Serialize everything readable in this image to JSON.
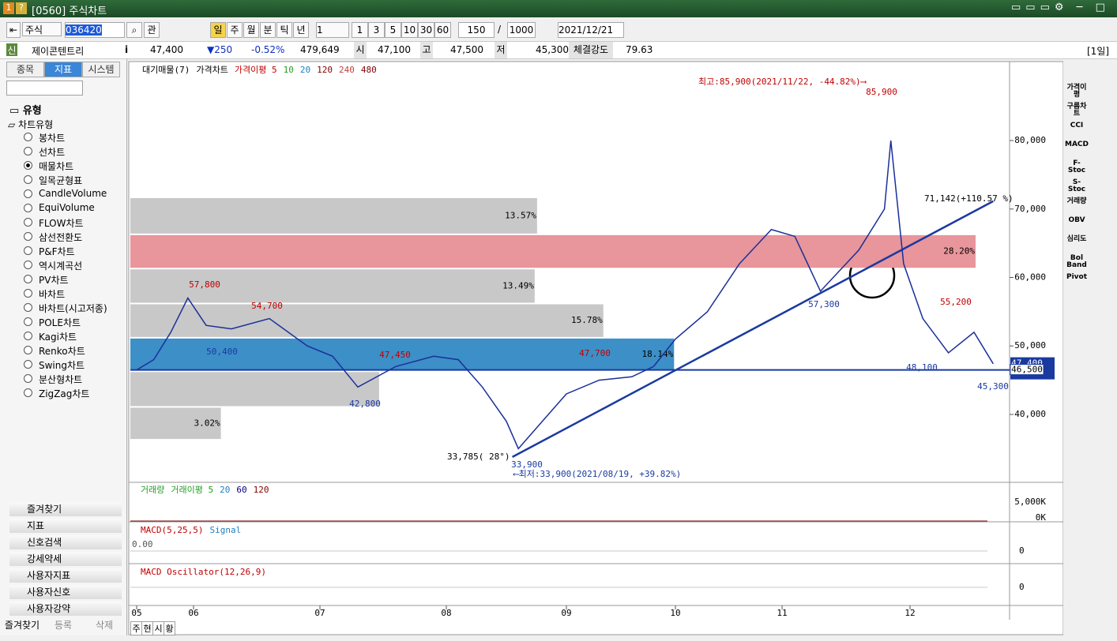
{
  "window": {
    "title": "[0560] 주식차트"
  },
  "toolbar": {
    "market": "주식",
    "code": "036420",
    "mode": "관",
    "units": [
      "일",
      "주",
      "월",
      "분",
      "틱",
      "년"
    ],
    "unit": "1",
    "periods": [
      "1",
      "3",
      "5",
      "10",
      "30",
      "60"
    ],
    "count": "150",
    "sep": "/",
    "max": "1000",
    "date": "2021/12/21"
  },
  "quote": {
    "flag": "신",
    "name": "제이콘텐트리",
    "info": "i",
    "price": "47,400",
    "change": "▼250",
    "rate": "-0.52%",
    "volume": "479,649",
    "open_label": "시",
    "open": "47,100",
    "high_label": "고",
    "high": "47,500",
    "low_label": "저",
    "low": "45,300",
    "strength_label": "체결강도",
    "strength": "79.63",
    "period": "[1일]"
  },
  "left_panel": {
    "tabs": [
      "종목",
      "지표",
      "시스템"
    ],
    "group": "유형",
    "subgroup": "차트유형",
    "chart_types": [
      {
        "label": "봉차트",
        "checked": false
      },
      {
        "label": "선차트",
        "checked": false
      },
      {
        "label": "매물차트",
        "checked": true
      },
      {
        "label": "일목균형표",
        "checked": false
      },
      {
        "label": "CandleVolume",
        "checked": false
      },
      {
        "label": "EquiVolume",
        "checked": false
      },
      {
        "label": "FLOW차트",
        "checked": false
      },
      {
        "label": "삼선전환도",
        "checked": false
      },
      {
        "label": "P&F차트",
        "checked": false
      },
      {
        "label": "역시계곡선",
        "checked": false
      },
      {
        "label": "PV차트",
        "checked": false
      },
      {
        "label": "바차트",
        "checked": false
      },
      {
        "label": "바차트(시고저종)",
        "checked": false
      },
      {
        "label": "POLE차트",
        "checked": false
      },
      {
        "label": "Kagi차트",
        "checked": false
      },
      {
        "label": "Renko차트",
        "checked": false
      },
      {
        "label": "Swing차트",
        "checked": false
      },
      {
        "label": "분산형차트",
        "checked": false
      },
      {
        "label": "ZigZag차트",
        "checked": false
      }
    ],
    "sections": [
      "즐겨찾기",
      "지표",
      "신호검색",
      "강세약세",
      "사용자지표",
      "사용자신호",
      "사용자강약"
    ],
    "footer": [
      "즐겨찾기",
      "등록",
      "삭제"
    ]
  },
  "right_toolbar": [
    "가격이평",
    "구름차트",
    "CCI",
    "MACD",
    "F-Stoc",
    "S-Stoc",
    "거래량",
    "OBV",
    "심리도",
    "Bol Band",
    "Pivot"
  ],
  "bottom_tabs": [
    "주",
    "현",
    "시",
    "황"
  ],
  "chart_data": {
    "type": "line",
    "legend": [
      "대기매물(7)",
      "가격차트",
      "가격이평 5",
      "10",
      "20",
      "120",
      "240",
      "480"
    ],
    "legend_colors": [
      "#000000",
      "#000000",
      "#c00000",
      "#20a020",
      "#2080c0",
      "#800000",
      "#c04040",
      "#800000"
    ],
    "x": [
      5.0,
      5.3,
      5.6,
      5.9,
      6.1,
      6.3,
      6.6,
      6.9,
      7.1,
      7.3,
      7.6,
      7.9,
      8.1,
      8.3,
      8.5,
      8.6,
      8.8,
      9.0,
      9.3,
      9.6,
      9.8,
      10.0,
      10.3,
      10.6,
      10.9,
      11.1,
      11.3,
      11.6,
      11.8,
      11.85,
      11.95,
      12.1,
      12.3,
      12.5,
      12.65
    ],
    "values": [
      46500,
      48000,
      52000,
      57000,
      53000,
      52500,
      54000,
      50000,
      48500,
      44000,
      47000,
      48500,
      48000,
      44000,
      39000,
      35000,
      39000,
      43000,
      45000,
      45500,
      47000,
      51000,
      55000,
      62000,
      67000,
      66000,
      58000,
      64000,
      70000,
      80000,
      62000,
      54000,
      49000,
      52000,
      47400
    ],
    "color": "#1a2f9a",
    "xlim": [
      4.95,
      12.7
    ],
    "xticks": [
      {
        "value": 5,
        "label": "05"
      },
      {
        "value": 6,
        "label": "06"
      },
      {
        "value": 7,
        "label": "07"
      },
      {
        "value": 8,
        "label": "08"
      },
      {
        "value": 9,
        "label": "09"
      },
      {
        "value": 10,
        "label": "10"
      },
      {
        "value": 11,
        "label": "11"
      },
      {
        "value": 12,
        "label": "12"
      }
    ],
    "ylim": [
      30200,
      91300
    ],
    "yticks": [
      {
        "value": 40000,
        "label": "40,000"
      },
      {
        "value": 50000,
        "label": "50,000"
      },
      {
        "value": 60000,
        "label": "60,000"
      },
      {
        "value": 70000,
        "label": "70,000"
      },
      {
        "value": 80000,
        "label": "80,000"
      }
    ],
    "volume_profile": {
      "bins": [
        36300,
        41100,
        46300,
        51200,
        56200,
        61300,
        66300,
        71700
      ],
      "values": [
        3.02,
        8.3,
        18.14,
        15.78,
        13.49,
        28.2,
        13.57
      ],
      "value_labels": [
        "3.02%",
        null,
        "18.14%",
        "15.78%",
        "13.49%",
        "28.20%",
        "13.57%"
      ],
      "colors": [
        "#c8c8c8",
        "#c8c8c8",
        "#3d8fc7",
        "#c8c8c8",
        "#c8c8c8",
        "#e8959b",
        "#c8c8c8"
      ]
    },
    "trendline": {
      "x": [
        8.55,
        12.65
      ],
      "values": [
        33785,
        71142
      ],
      "color": "#1a3aa0"
    },
    "current": {
      "value": 46500,
      "label": "46,500"
    },
    "last_price": "47,400",
    "annotations": [
      "최고:85,900(2021/11/22, -44.82%)⟶",
      "85,900",
      "57,800",
      "54,700",
      "50,400",
      "42,800",
      "47,450",
      "47,700",
      "33,785( 28°)",
      "33,900",
      "⟵최저:33,900(2021/08/19, +39.82%)",
      "57,300",
      "48,100",
      "55,200",
      "45,300",
      "71,142(+110.57 %)"
    ],
    "panels": {
      "volume": {
        "legend": [
          "거래량",
          "거래이평 5",
          "20",
          "60",
          "120"
        ],
        "ticks": [
          "5,000K",
          "0K"
        ]
      },
      "macd": {
        "legend": [
          "MACD(5,25,5)",
          "Signal"
        ],
        "left": "0.00",
        "tick": "0"
      },
      "oscillator": {
        "legend": [
          "MACD Oscillator(12,26,9)"
        ],
        "tick": "0"
      }
    }
  }
}
